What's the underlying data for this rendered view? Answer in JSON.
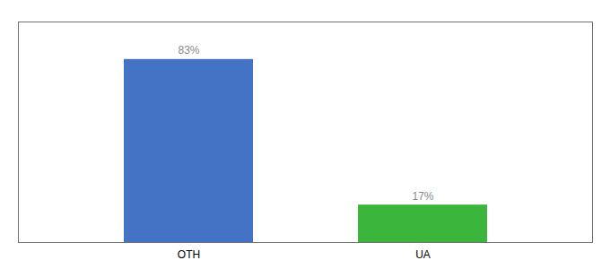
{
  "chart_data": {
    "type": "bar",
    "categories": [
      "OTH",
      "UA"
    ],
    "values": [
      83,
      17
    ],
    "value_labels": [
      "83%",
      "17%"
    ],
    "colors": [
      "#4472c4",
      "#3cb53c"
    ],
    "ylim": [
      0,
      100
    ],
    "data_labels": true,
    "tick_labels": "x"
  }
}
